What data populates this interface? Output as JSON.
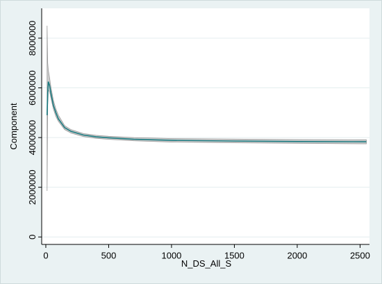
{
  "chart_data": {
    "type": "line",
    "x_label": "N_DS_All_S",
    "y_label": "Component",
    "x": [
      10,
      15,
      20,
      30,
      40,
      60,
      80,
      100,
      150,
      200,
      300,
      400,
      500,
      700,
      1000,
      1500,
      2000,
      2550
    ],
    "series": [
      {
        "color": "#1a7a80",
        "values": [
          4900000,
          5800000,
          6250000,
          6100000,
          5800000,
          5300000,
          5000000,
          4750000,
          4400000,
          4250000,
          4100000,
          4030000,
          3990000,
          3930000,
          3890000,
          3860000,
          3840000,
          3830000
        ]
      }
    ],
    "band": {
      "color": "#b8b8b8",
      "lower": [
        1850000,
        5300000,
        5900000,
        5850000,
        5600000,
        5150000,
        4850000,
        4650000,
        4320000,
        4180000,
        4040000,
        3970000,
        3930000,
        3870000,
        3820000,
        3790000,
        3770000,
        3750000
      ],
      "upper": [
        8500000,
        7000000,
        6700000,
        6400000,
        6050000,
        5500000,
        5150000,
        4900000,
        4480000,
        4320000,
        4160000,
        4090000,
        4050000,
        4000000,
        3960000,
        3940000,
        3920000,
        3910000
      ]
    },
    "xlim": [
      -33,
      2575
    ],
    "ylim": [
      -300000,
      9200000
    ],
    "xticks": [
      0,
      500,
      1000,
      1500,
      2000,
      2500
    ],
    "yticks": [
      0,
      2000000,
      4000000,
      6000000,
      8000000
    ],
    "grid": true
  }
}
